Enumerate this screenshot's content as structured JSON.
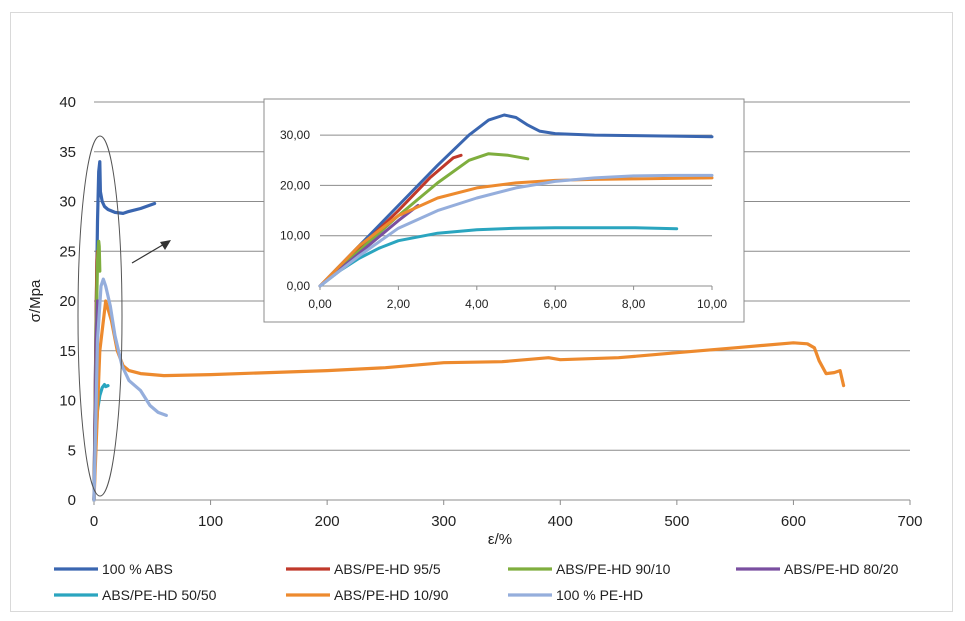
{
  "chart_data": [
    {
      "type": "line",
      "role": "main",
      "xlabel": "ε/%",
      "ylabel": "σ/Mpa",
      "xlim": [
        0,
        700
      ],
      "ylim": [
        0,
        40
      ],
      "xticks": [
        "0",
        "100",
        "200",
        "300",
        "400",
        "500",
        "600",
        "700"
      ],
      "yticks": [
        "0",
        "5",
        "10",
        "15",
        "20",
        "25",
        "30",
        "35",
        "40"
      ],
      "grid": "horizontal",
      "legend": "bottom",
      "series": [
        {
          "name": "100 % ABS",
          "color": "#3A66B0",
          "x": [
            0,
            1.5,
            3,
            4,
            5,
            5.5,
            7,
            9,
            12,
            18,
            25,
            30,
            40,
            52
          ],
          "y": [
            0,
            15,
            28,
            33,
            34,
            31,
            30,
            29.5,
            29.2,
            28.9,
            28.8,
            29,
            29.3,
            29.8
          ]
        },
        {
          "name": "ABS/PE-HD 95/5",
          "color": "#C0392B",
          "x": [
            0,
            1,
            2,
            2.5,
            3
          ],
          "y": [
            0,
            10,
            20,
            24,
            25
          ]
        },
        {
          "name": "ABS/PE-HD 90/10",
          "color": "#7FAE3E",
          "x": [
            0,
            1,
            2,
            3,
            4,
            4.5,
            5
          ],
          "y": [
            0,
            9,
            18,
            24,
            26,
            25.5,
            23
          ]
        },
        {
          "name": "ABS/PE-HD 80/20",
          "color": "#7A4FA0",
          "x": [
            0,
            1,
            2,
            3
          ],
          "y": [
            0,
            8,
            16,
            20
          ]
        },
        {
          "name": "ABS/PE-HD 50/50",
          "color": "#2AA5BF",
          "x": [
            0,
            1,
            3,
            5,
            7,
            9,
            10,
            12
          ],
          "y": [
            0,
            5,
            9,
            10.5,
            11.3,
            11.6,
            11.4,
            11.5
          ]
        },
        {
          "name": "ABS/PE-HD 10/90",
          "color": "#ED8A2E",
          "x": [
            0,
            5,
            10,
            15,
            20,
            25,
            30,
            40,
            60,
            100,
            150,
            200,
            250,
            300,
            350,
            390,
            400,
            450,
            500,
            550,
            600,
            612,
            618,
            622,
            628,
            635,
            640,
            643
          ],
          "y": [
            0,
            15,
            20,
            18,
            15,
            13.5,
            13,
            12.7,
            12.5,
            12.6,
            12.8,
            13.0,
            13.3,
            13.8,
            13.9,
            14.3,
            14.1,
            14.3,
            14.8,
            15.3,
            15.8,
            15.7,
            15.3,
            14.0,
            12.7,
            12.8,
            13,
            11.5
          ]
        },
        {
          "name": "100 % PE-HD",
          "color": "#95AEDC",
          "x": [
            0,
            3,
            6,
            8,
            10,
            14,
            18,
            24,
            30,
            40,
            48,
            55,
            62
          ],
          "y": [
            0,
            16,
            21.5,
            22.2,
            21.5,
            19.5,
            16.5,
            13.5,
            12,
            11,
            9.5,
            8.8,
            8.5
          ]
        }
      ]
    },
    {
      "type": "line",
      "role": "inset",
      "xlim": [
        0,
        10
      ],
      "ylim": [
        0,
        35
      ],
      "xticks": [
        "0,00",
        "2,00",
        "4,00",
        "6,00",
        "8,00",
        "10,00"
      ],
      "yticks": [
        "0,00",
        "10,00",
        "20,00",
        "30,00"
      ],
      "grid": "horizontal",
      "series": [
        {
          "name": "100 % ABS",
          "color": "#3A66B0",
          "x": [
            0,
            1,
            2,
            3,
            3.8,
            4.3,
            4.7,
            5.0,
            5.3,
            5.6,
            6,
            7,
            8,
            9,
            10
          ],
          "y": [
            0,
            8,
            16,
            24,
            30,
            33,
            34,
            33.5,
            32,
            30.8,
            30.3,
            30,
            29.9,
            29.8,
            29.7
          ]
        },
        {
          "name": "ABS/PE-HD 95/5",
          "color": "#C0392B",
          "x": [
            0,
            1,
            2,
            2.8,
            3.4,
            3.6
          ],
          "y": [
            0,
            7.5,
            15,
            21.5,
            25.5,
            26
          ]
        },
        {
          "name": "ABS/PE-HD 90/10",
          "color": "#7FAE3E",
          "x": [
            0,
            1,
            2,
            3,
            3.8,
            4.3,
            4.8,
            5.3
          ],
          "y": [
            0,
            7,
            14,
            20.5,
            25,
            26.3,
            26,
            25.3
          ]
        },
        {
          "name": "ABS/PE-HD 80/20",
          "color": "#7A4FA0",
          "x": [
            0,
            1,
            2,
            2.5
          ],
          "y": [
            0,
            6.5,
            13,
            16
          ]
        },
        {
          "name": "ABS/PE-HD 50/50",
          "color": "#2AA5BF",
          "x": [
            0,
            0.5,
            1,
            1.5,
            2,
            3,
            4,
            5,
            6,
            7,
            8,
            9.1
          ],
          "y": [
            0,
            3,
            5.5,
            7.5,
            9,
            10.5,
            11.2,
            11.5,
            11.6,
            11.6,
            11.6,
            11.4
          ]
        },
        {
          "name": "ABS/PE-HD 10/90",
          "color": "#ED8A2E",
          "x": [
            0,
            1,
            2,
            3,
            4,
            5,
            6,
            7,
            8,
            9,
            10
          ],
          "y": [
            0,
            8,
            14,
            17.5,
            19.5,
            20.5,
            21,
            21.2,
            21.3,
            21.4,
            21.5
          ]
        },
        {
          "name": "100 % PE-HD",
          "color": "#95AEDC",
          "x": [
            0,
            1,
            2,
            3,
            4,
            5,
            6,
            7,
            8,
            9,
            10
          ],
          "y": [
            0,
            6,
            11.5,
            15,
            17.5,
            19.5,
            20.8,
            21.5,
            21.9,
            22,
            22
          ]
        }
      ]
    }
  ]
}
